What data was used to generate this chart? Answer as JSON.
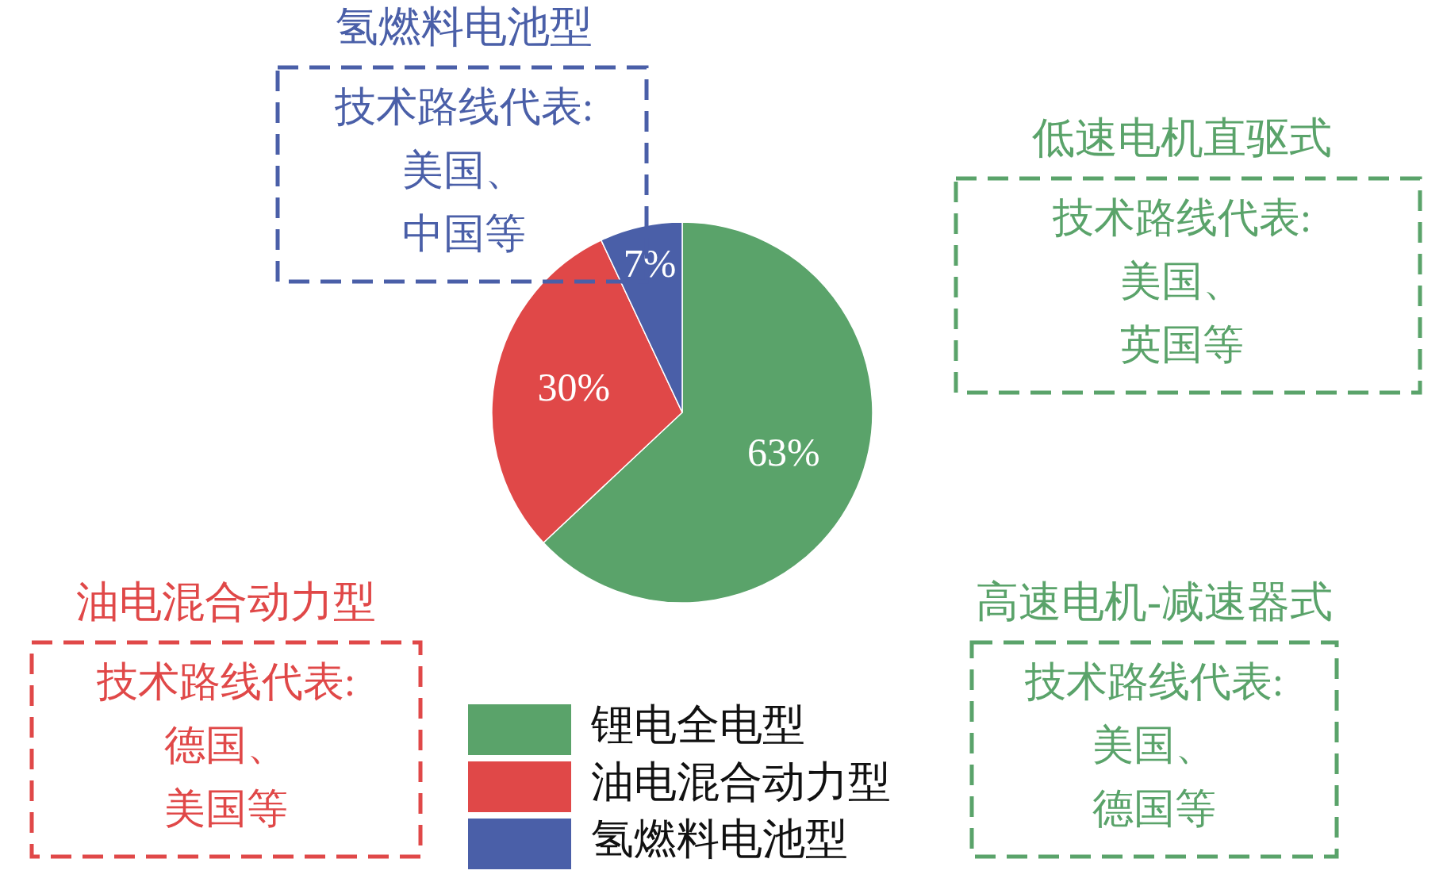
{
  "chart_data": {
    "type": "pie",
    "categories": [
      "锂电全电型",
      "油电混合动力型",
      "氢燃料电池型"
    ],
    "values": [
      63,
      30,
      7
    ],
    "colors": [
      "#5aa36a",
      "#e04848",
      "#4a5fa8"
    ],
    "value_labels": [
      "63%",
      "30%",
      "7%"
    ],
    "legend": "bottom",
    "annotations": [
      "氢燃料电池型",
      "技术路线代表:",
      "美国、",
      "中国等",
      "低速电机直驱式",
      "技术路线代表:",
      "美国、",
      "英国等",
      "油电混合动力型",
      "技术路线代表:",
      "德国、",
      "美国等",
      "高速电机-减速器式",
      "技术路线代表:",
      "美国、",
      "德国等"
    ]
  }
}
